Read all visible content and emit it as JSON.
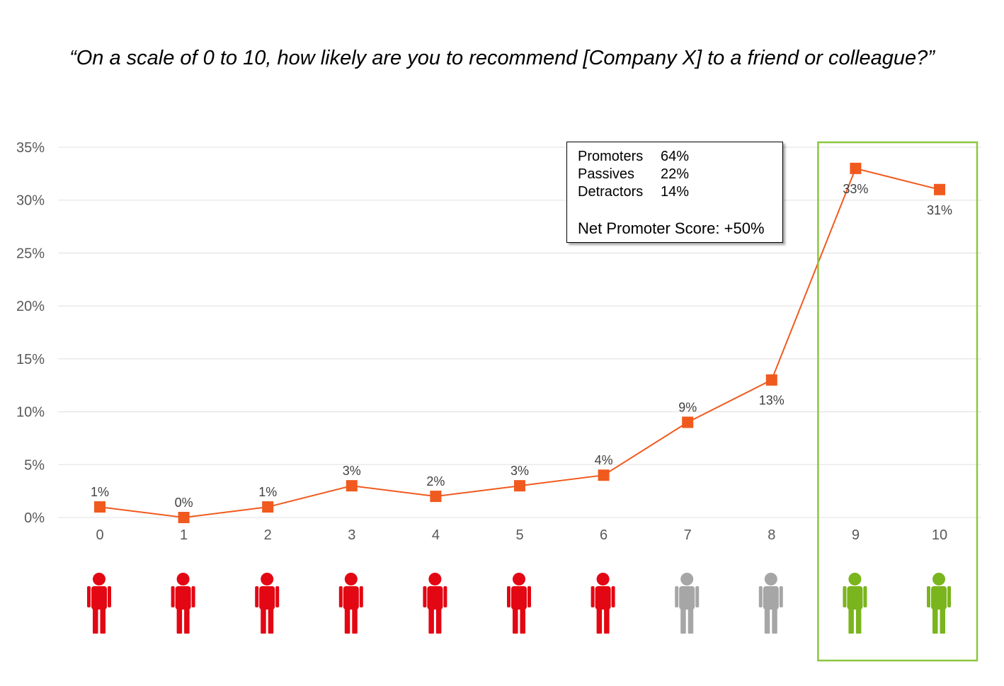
{
  "question": "“On a scale of 0 to 10, how likely are you to recommend [Company X] to a friend or colleague?”",
  "summary": {
    "rows": [
      {
        "label": "Promoters",
        "value": "64%"
      },
      {
        "label": "Passives",
        "value": "22%"
      },
      {
        "label": "Detractors",
        "value": "14%"
      }
    ],
    "nps_label": "Net Promoter Score: +50%"
  },
  "chart_data": {
    "type": "line",
    "x": [
      "0",
      "1",
      "2",
      "3",
      "4",
      "5",
      "6",
      "7",
      "8",
      "9",
      "10"
    ],
    "values": [
      1,
      0,
      1,
      3,
      2,
      3,
      4,
      9,
      13,
      33,
      31
    ],
    "data_labels": [
      "1%",
      "0%",
      "1%",
      "3%",
      "2%",
      "3%",
      "4%",
      "9%",
      "13%",
      "33%",
      "31%"
    ],
    "ylim": [
      0,
      35
    ],
    "y_ticks": [
      0,
      5,
      10,
      15,
      20,
      25,
      30,
      35
    ],
    "y_tick_labels": [
      "0%",
      "5%",
      "10%",
      "15%",
      "20%",
      "25%",
      "30%",
      "35%"
    ],
    "grid": true,
    "line_color": "#F05A1E",
    "marker": "square",
    "highlight_box": {
      "from": "9",
      "to": "10",
      "color": "#8DC63F"
    },
    "person_groups": [
      "detractor",
      "detractor",
      "detractor",
      "detractor",
      "detractor",
      "detractor",
      "detractor",
      "passive",
      "passive",
      "promoter",
      "promoter"
    ],
    "person_colors": {
      "detractor": "#E30613",
      "passive": "#A6A6A6",
      "promoter": "#7AB51D"
    }
  }
}
